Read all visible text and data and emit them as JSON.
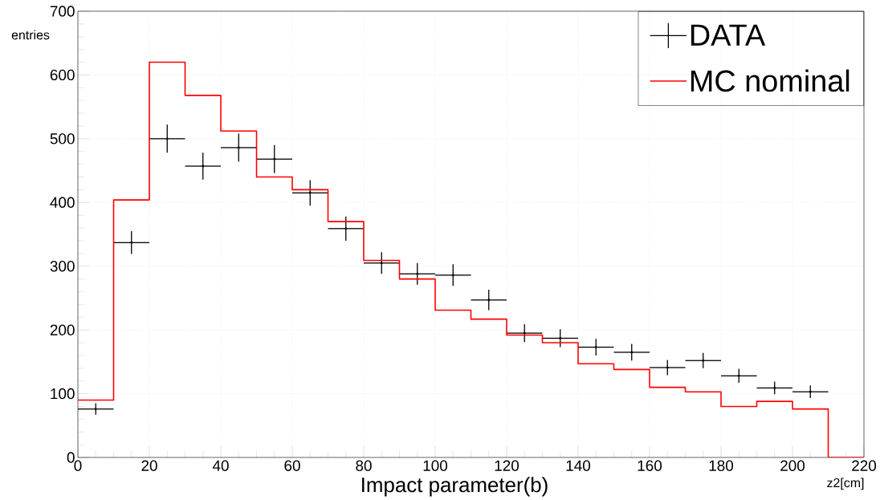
{
  "chart_data": {
    "type": "histogram",
    "xlabel": "z2[cm]",
    "ylabel": "entries",
    "annotations": [
      "Impact parameter(b)"
    ],
    "bins": [
      0,
      10,
      20,
      30,
      40,
      50,
      60,
      70,
      80,
      90,
      100,
      110,
      120,
      130,
      140,
      150,
      160,
      170,
      180,
      190,
      200,
      210,
      220
    ],
    "xlim": [
      0,
      220
    ],
    "xticks": [
      0,
      20,
      40,
      60,
      80,
      100,
      120,
      140,
      160,
      180,
      200,
      220
    ],
    "ylim": [
      0,
      700
    ],
    "yticks": [
      0,
      100,
      200,
      300,
      400,
      500,
      600,
      700
    ],
    "grid": true,
    "legend": "top right",
    "series": [
      {
        "name": "DATA",
        "type": "scatter",
        "color": "#000000",
        "x": [
          5,
          15,
          25,
          35,
          45,
          55,
          65,
          75,
          85,
          95,
          105,
          115,
          125,
          135,
          145,
          155,
          165,
          175,
          185,
          195,
          205
        ],
        "values": [
          76,
          337,
          500,
          457,
          486,
          468,
          415,
          359,
          305,
          288,
          286,
          247,
          195,
          187,
          173,
          165,
          141,
          152,
          128,
          109,
          103
        ],
        "errors": [
          9,
          18,
          22,
          21,
          22,
          22,
          20,
          19,
          17,
          17,
          17,
          16,
          14,
          14,
          13,
          13,
          12,
          12,
          11,
          10,
          10
        ],
        "xerrors": [
          5,
          5,
          5,
          5,
          5,
          5,
          5,
          5,
          5,
          5,
          5,
          5,
          5,
          5,
          5,
          5,
          5,
          5,
          5,
          5,
          5
        ]
      },
      {
        "name": "MC nominal",
        "type": "histogram",
        "color": "#ff0000",
        "values": [
          90,
          404,
          620,
          568,
          512,
          440,
          420,
          370,
          309,
          280,
          231,
          217,
          192,
          180,
          147,
          138,
          110,
          103,
          80,
          88,
          76,
          0
        ]
      }
    ]
  }
}
